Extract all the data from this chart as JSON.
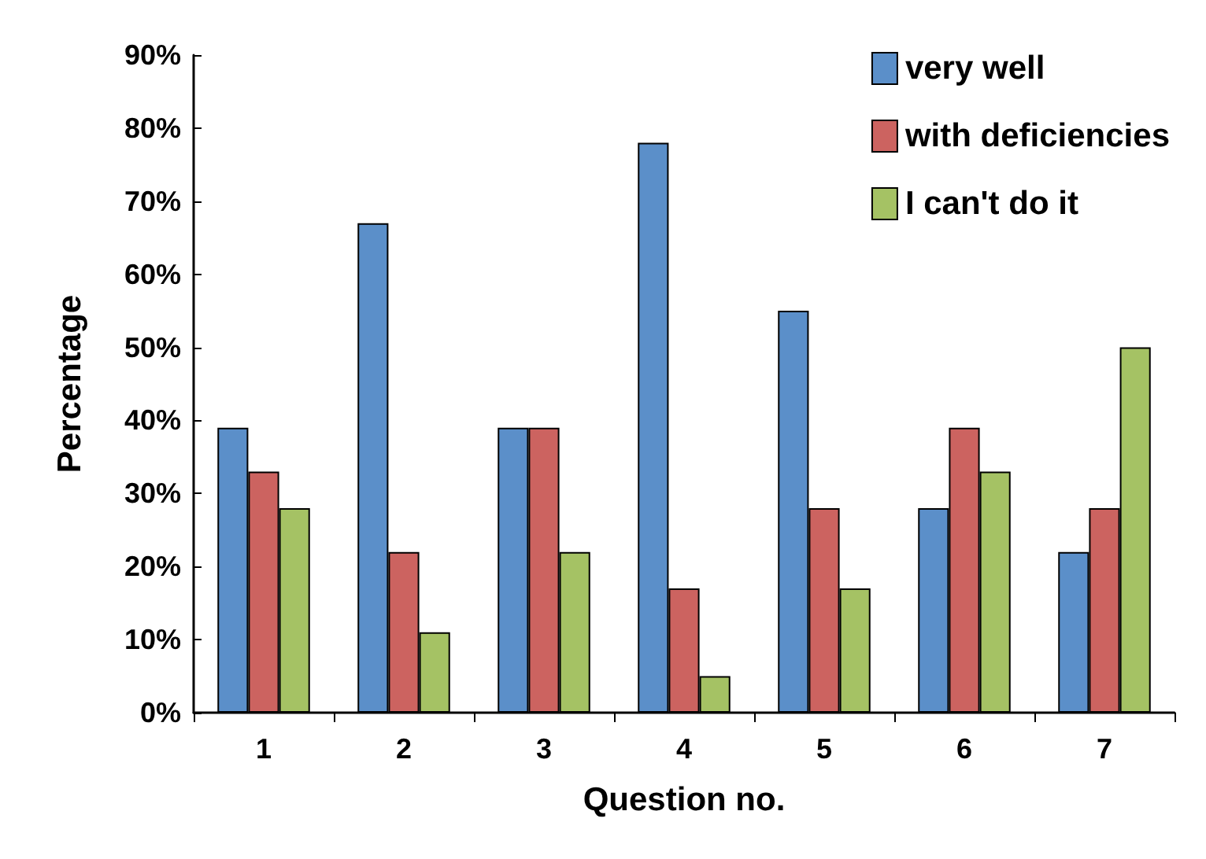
{
  "chart_data": {
    "type": "bar",
    "xlabel": "Question no.",
    "ylabel": "Percentage",
    "categories": [
      "1",
      "2",
      "3",
      "4",
      "5",
      "6",
      "7"
    ],
    "series": [
      {
        "name": "very well",
        "color": "#5b8fc9",
        "values": [
          39,
          67,
          39,
          78,
          55,
          28,
          22
        ]
      },
      {
        "name": "with deficiencies",
        "color": "#cc6360",
        "values": [
          33,
          22,
          39,
          17,
          28,
          39,
          28
        ]
      },
      {
        "name": "I can't do it",
        "color": "#a5c264",
        "values": [
          28,
          11,
          22,
          5,
          17,
          33,
          50
        ]
      }
    ],
    "ylim": [
      0,
      90
    ],
    "yticks": [
      {
        "value": 0,
        "label": "0%"
      },
      {
        "value": 10,
        "label": "10%"
      },
      {
        "value": 20,
        "label": "20%"
      },
      {
        "value": 30,
        "label": "30%"
      },
      {
        "value": 40,
        "label": "40%"
      },
      {
        "value": 50,
        "label": "50%"
      },
      {
        "value": 60,
        "label": "60%"
      },
      {
        "value": 70,
        "label": "70%"
      },
      {
        "value": 80,
        "label": "80%"
      },
      {
        "value": 90,
        "label": "90%"
      }
    ],
    "grid": false,
    "legend": "top right"
  }
}
